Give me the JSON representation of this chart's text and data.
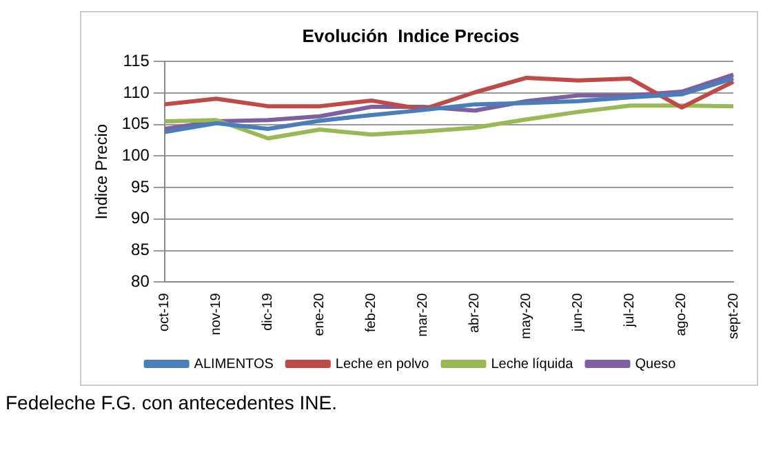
{
  "chart_data": {
    "type": "line",
    "title": "Evolución  Indice Precios",
    "ylabel": "Indice Precio",
    "categories": [
      "oct-19",
      "nov-19",
      "dic-19",
      "ene-20",
      "feb-20",
      "mar-20",
      "abr-20",
      "may-20",
      "jun-20",
      "jul-20",
      "ago-20",
      "sept-20"
    ],
    "series": [
      {
        "name": "ALIMENTOS",
        "color": "#4a7ebb",
        "values": [
          103.8,
          105.2,
          104.3,
          105.6,
          106.5,
          107.3,
          108.2,
          108.4,
          108.7,
          109.3,
          109.8,
          112.3
        ]
      },
      {
        "name": "Leche en polvo",
        "color": "#be4b48",
        "values": [
          108.2,
          109.1,
          107.9,
          107.9,
          108.8,
          107.4,
          110.1,
          112.4,
          112.0,
          112.3,
          107.7,
          111.8
        ]
      },
      {
        "name": "Leche líquida",
        "color": "#98b954",
        "values": [
          105.5,
          105.7,
          102.8,
          104.2,
          103.4,
          103.9,
          104.5,
          105.8,
          107.0,
          108.0,
          108.0,
          107.9
        ]
      },
      {
        "name": "Queso",
        "color": "#7d60a0",
        "values": [
          104.3,
          105.5,
          105.7,
          106.3,
          107.8,
          107.8,
          107.2,
          108.7,
          109.6,
          109.6,
          110.2,
          112.9
        ]
      }
    ],
    "ylim": [
      80,
      115
    ],
    "yticks": [
      80,
      85,
      90,
      95,
      100,
      105,
      110,
      115
    ],
    "grid": "y",
    "legend": "bottom",
    "marker": "none",
    "line_style": "solid",
    "annotations": [
      "Fedeleche F.G. con antecedentes INE."
    ]
  }
}
